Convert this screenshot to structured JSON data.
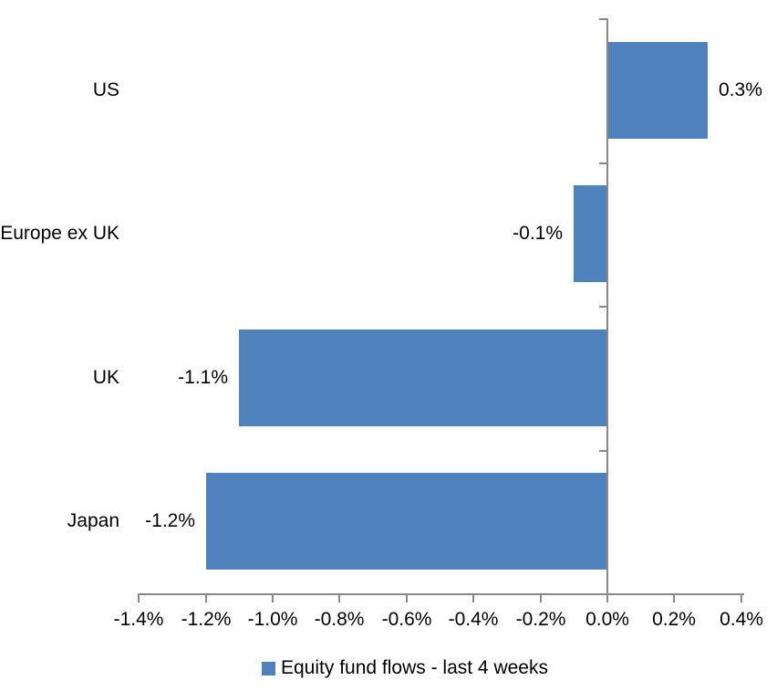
{
  "chart_data": {
    "type": "bar",
    "orientation": "horizontal",
    "title": "",
    "xlabel": "",
    "ylabel": "",
    "categories": [
      "US",
      "Europe ex UK",
      "UK",
      "Japan"
    ],
    "series": [
      {
        "name": "Equity fund flows - last 4 weeks",
        "values": [
          0.3,
          -0.1,
          -1.1,
          -1.2
        ],
        "value_labels": [
          "0.3%",
          "-0.1%",
          "-1.1%",
          "-1.2%"
        ]
      }
    ],
    "xlim": [
      -1.4,
      0.4
    ],
    "x_ticks": [
      -1.4,
      -1.2,
      -1.0,
      -0.8,
      -0.6,
      -0.4,
      -0.2,
      0.0,
      0.2,
      0.4
    ],
    "x_tick_labels": [
      "-1.4%",
      "-1.2%",
      "-1.0%",
      "-0.8%",
      "-0.6%",
      "-0.4%",
      "-0.2%",
      "0.0%",
      "0.2%",
      "0.4%"
    ],
    "grid": false,
    "legend_position": "bottom",
    "data_label_position": "outside-end",
    "colors": {
      "bar": "#4F81BD",
      "axis": "#898989",
      "text": "#000000",
      "background": "#FFFFFF"
    }
  },
  "legend": {
    "marker": "square",
    "label": "Equity fund flows - last 4 weeks"
  }
}
